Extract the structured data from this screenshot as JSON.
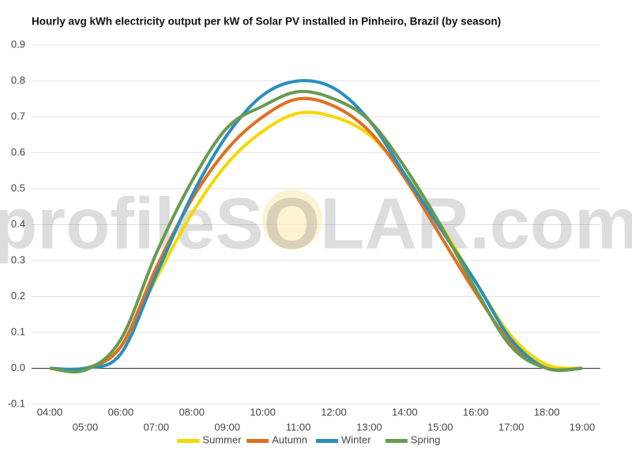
{
  "chart_data": {
    "type": "line",
    "title": "Hourly avg kWh electricity output per kW of Solar PV installed in Pinheiro, Brazil (by season)",
    "watermark": "profileSOLAR.com",
    "categories": [
      "04:00",
      "05:00",
      "06:00",
      "07:00",
      "08:00",
      "09:00",
      "10:00",
      "11:00",
      "12:00",
      "13:00",
      "14:00",
      "15:00",
      "16:00",
      "17:00",
      "18:00",
      "19:00"
    ],
    "series": [
      {
        "name": "Summer",
        "color": "#f5d800",
        "values": [
          0,
          0,
          0.06,
          0.25,
          0.43,
          0.57,
          0.66,
          0.71,
          0.7,
          0.65,
          0.54,
          0.4,
          0.24,
          0.09,
          0.01,
          0
        ]
      },
      {
        "name": "Autumn",
        "color": "#e07020",
        "values": [
          0,
          0,
          0.06,
          0.28,
          0.47,
          0.61,
          0.7,
          0.75,
          0.73,
          0.66,
          0.53,
          0.37,
          0.21,
          0.07,
          0,
          0
        ]
      },
      {
        "name": "Winter",
        "color": "#2a8fbd",
        "values": [
          0,
          0,
          0.04,
          0.26,
          0.48,
          0.65,
          0.76,
          0.8,
          0.78,
          0.69,
          0.54,
          0.39,
          0.24,
          0.08,
          0,
          0
        ]
      },
      {
        "name": "Spring",
        "color": "#6a9a50",
        "values": [
          0,
          -0.005,
          0.08,
          0.32,
          0.52,
          0.67,
          0.73,
          0.77,
          0.75,
          0.69,
          0.56,
          0.4,
          0.22,
          0.06,
          0,
          0
        ]
      }
    ],
    "ylim": [
      -0.1,
      0.9
    ],
    "yticks": [
      -0.1,
      {
        "value": 0,
        "label": "0.0"
      },
      0.1,
      0.2,
      0.3,
      0.4,
      0.5,
      0.6,
      0.7,
      0.8,
      0.9
    ],
    "grid": true,
    "legend": "bottom"
  }
}
